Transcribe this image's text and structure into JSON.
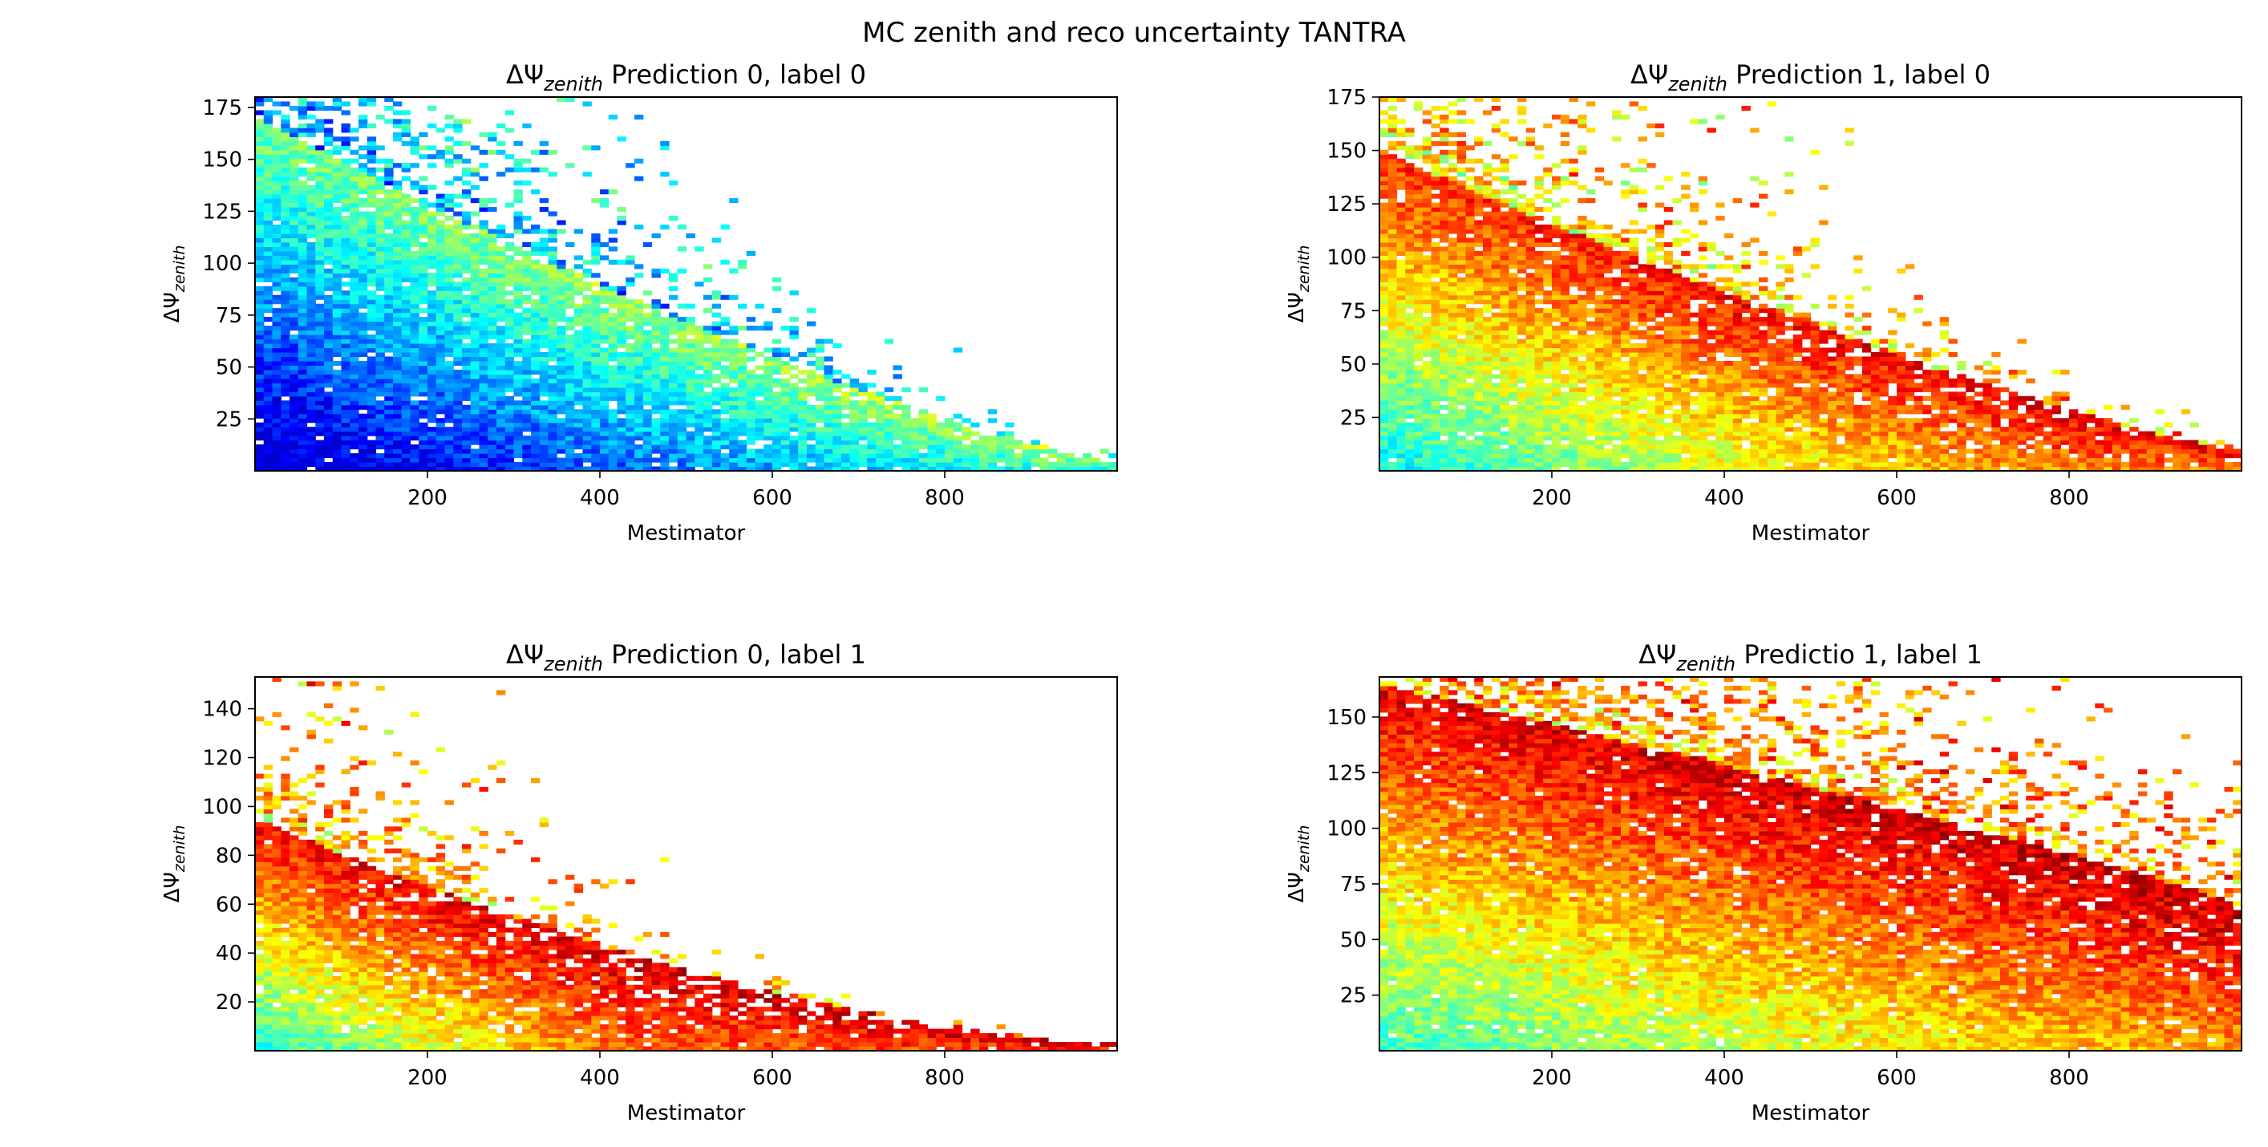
{
  "figure": {
    "suptitle": "MC zenith and reco uncertainty TANTRA"
  },
  "chart_data": [
    {
      "type": "heatmap",
      "title_main": "ΔΨ",
      "title_sub": "zenith",
      "title_rest": " Prediction 0, label 0",
      "xlabel": "Mestimator",
      "ylabel_main": "ΔΨ",
      "ylabel_sub": "zenith",
      "xlim": [
        0,
        1000
      ],
      "ylim": [
        0,
        180
      ],
      "xticks": [
        200,
        400,
        600,
        800
      ],
      "yticks": [
        25,
        50,
        75,
        100,
        125,
        150,
        175
      ],
      "colormap": "jet",
      "density": {
        "y_start": 170,
        "y_end": 5,
        "x_scale": 1000,
        "decay": 1.3,
        "max_pop_x": 0.9,
        "pop_floor": 0.25,
        "peak_color": 0.58
      }
    },
    {
      "type": "heatmap",
      "title_main": "ΔΨ",
      "title_sub": "zenith",
      "title_rest": " Prediction 1, label 0",
      "xlabel": "Mestimator",
      "ylabel_main": "ΔΨ",
      "ylabel_sub": "zenith",
      "xlim": [
        0,
        1000
      ],
      "ylim": [
        0,
        175
      ],
      "xticks": [
        200,
        400,
        600,
        800
      ],
      "yticks": [
        25,
        50,
        75,
        100,
        125,
        150,
        175
      ],
      "colormap": "jet",
      "density": {
        "y_start": 150,
        "y_end": 10,
        "x_scale": 1000,
        "decay": 1.25,
        "max_pop_x": 0.75,
        "pop_floor": 0.2,
        "peak_color": 0.92
      }
    },
    {
      "type": "heatmap",
      "title_main": "ΔΨ",
      "title_sub": "zenith",
      "title_rest": " Prediction 0, label 1",
      "xlabel": "Mestimator",
      "ylabel_main": "ΔΨ",
      "ylabel_sub": "zenith",
      "xlim": [
        0,
        1000
      ],
      "ylim": [
        0,
        153
      ],
      "xticks": [
        200,
        400,
        600,
        800
      ],
      "yticks": [
        20,
        40,
        60,
        80,
        100,
        120,
        140
      ],
      "colormap": "jet",
      "density": {
        "y_start": 95,
        "y_end": 3,
        "x_scale": 1000,
        "decay": 1.6,
        "max_pop_x": 0.45,
        "pop_floor": 0.05,
        "peak_color": 0.95
      }
    },
    {
      "type": "heatmap",
      "title_main": "ΔΨ",
      "title_sub": "zenith",
      "title_rest": " Predictio 1, label 1",
      "xlabel": "Mestimator",
      "ylabel_main": "ΔΨ",
      "ylabel_sub": "zenith",
      "xlim": [
        0,
        1000
      ],
      "ylim": [
        0,
        168
      ],
      "xticks": [
        200,
        400,
        600,
        800
      ],
      "yticks": [
        25,
        50,
        75,
        100,
        125,
        150
      ],
      "colormap": "jet",
      "density": {
        "y_start": 165,
        "y_end": 65,
        "x_scale": 1000,
        "decay": 0.9,
        "max_pop_x": 1.0,
        "pop_floor": 0.55,
        "peak_color": 0.98
      }
    }
  ]
}
